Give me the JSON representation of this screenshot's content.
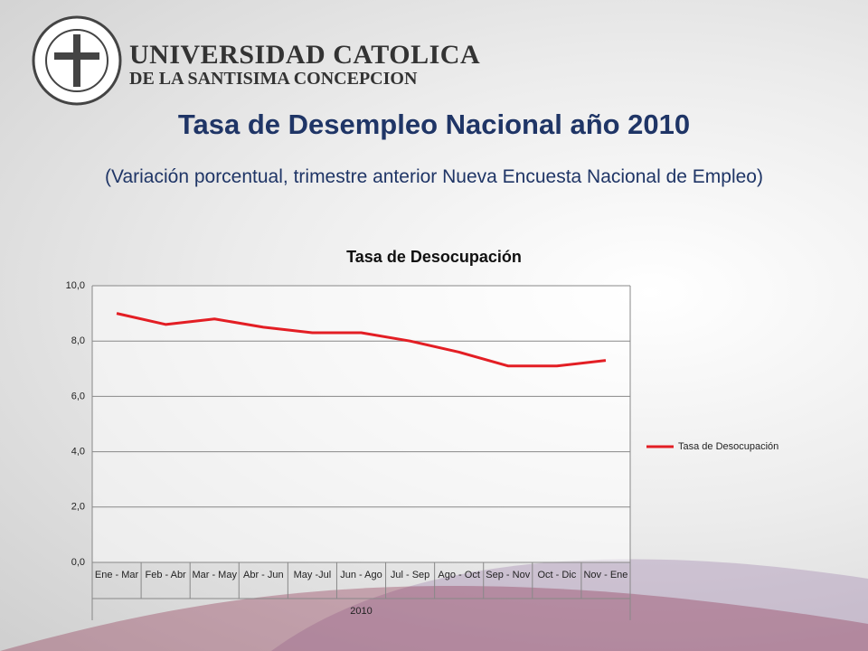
{
  "header": {
    "line1": "UNIVERSIDAD CATOLICA",
    "line2": "DE LA SANTISIMA CONCEPCION"
  },
  "title": "Tasa de Desempleo Nacional año 2010",
  "subtitle": "(Variación porcentual, trimestre anterior Nueva Encuesta Nacional de Empleo)",
  "chart_data": {
    "type": "line",
    "title": "Tasa de Desocupación",
    "categories": [
      "Ene - Mar",
      "Feb - Abr",
      "Mar - May",
      "Abr - Jun",
      "May -Jul",
      "Jun - Ago",
      "Jul - Sep",
      "Ago - Oct",
      "Sep - Nov",
      "Oct - Dic",
      "Nov - Ene"
    ],
    "category_group": "2010",
    "series": [
      {
        "name": "Tasa de Desocupación",
        "color": "#e31e24",
        "values": [
          9.0,
          8.6,
          8.8,
          8.5,
          8.3,
          8.3,
          8.0,
          7.6,
          7.1,
          7.1,
          7.3
        ]
      }
    ],
    "ylim": [
      0,
      10
    ],
    "yticks": [
      {
        "value": 0,
        "label": "0,0"
      },
      {
        "value": 2,
        "label": "2,0"
      },
      {
        "value": 4,
        "label": "4,0"
      },
      {
        "value": 6,
        "label": "6,0"
      },
      {
        "value": 8,
        "label": "8,0"
      },
      {
        "value": 10,
        "label": "10,0"
      }
    ],
    "grid": true,
    "legend": "right"
  }
}
